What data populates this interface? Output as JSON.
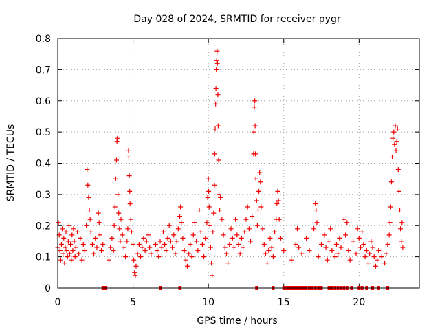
{
  "chart_data": {
    "type": "scatter",
    "title": "Day 028 of 2024, SRMTID for receiver pygr",
    "xlabel": "GPS time / hours",
    "ylabel": "SRMTID / TECUs",
    "xlim": [
      0,
      24
    ],
    "ylim": [
      0,
      0.8
    ],
    "xticks": [
      0,
      5,
      10,
      15,
      20
    ],
    "xtick_labels": [
      "0",
      "5",
      "10",
      "15",
      "20"
    ],
    "yticks": [
      0,
      0.1,
      0.2,
      0.3,
      0.4,
      0.5,
      0.6,
      0.7,
      0.8
    ],
    "ytick_labels": [
      "0",
      "0.1",
      "0.2",
      "0.3",
      "0.4",
      "0.5",
      "0.6",
      "0.7",
      "0.8"
    ],
    "grid": true,
    "marker": "+",
    "color": "#ee0000",
    "series": [
      {
        "name": "SRMTID",
        "points": [
          [
            0.0,
            0.13
          ],
          [
            0.05,
            0.21
          ],
          [
            0.1,
            0.17
          ],
          [
            0.15,
            0.12
          ],
          [
            0.2,
            0.09
          ],
          [
            0.25,
            0.14
          ],
          [
            0.3,
            0.19
          ],
          [
            0.35,
            0.11
          ],
          [
            0.4,
            0.16
          ],
          [
            0.45,
            0.08
          ],
          [
            0.5,
            0.13
          ],
          [
            0.55,
            0.18
          ],
          [
            0.6,
            0.12
          ],
          [
            0.65,
            0.1
          ],
          [
            0.7,
            0.15
          ],
          [
            0.75,
            0.2
          ],
          [
            0.8,
            0.11
          ],
          [
            0.85,
            0.14
          ],
          [
            0.9,
            0.09
          ],
          [
            0.95,
            0.17
          ],
          [
            1.0,
            0.12
          ],
          [
            1.05,
            0.19
          ],
          [
            1.1,
            0.15
          ],
          [
            1.15,
            0.1
          ],
          [
            1.2,
            0.13
          ],
          [
            1.3,
            0.18
          ],
          [
            1.4,
            0.11
          ],
          [
            1.5,
            0.16
          ],
          [
            1.6,
            0.09
          ],
          [
            1.7,
            0.14
          ],
          [
            1.8,
            0.12
          ],
          [
            1.9,
            0.2
          ],
          [
            1.95,
            0.38
          ],
          [
            2.0,
            0.33
          ],
          [
            2.05,
            0.29
          ],
          [
            2.1,
            0.25
          ],
          [
            2.15,
            0.22
          ],
          [
            2.2,
            0.18
          ],
          [
            2.3,
            0.14
          ],
          [
            2.4,
            0.11
          ],
          [
            2.5,
            0.16
          ],
          [
            2.6,
            0.13
          ],
          [
            2.7,
            0.24
          ],
          [
            2.75,
            0.21
          ],
          [
            2.8,
            0.17
          ],
          [
            2.9,
            0.12
          ],
          [
            3.0,
            0.14
          ],
          [
            3.4,
            0.09
          ],
          [
            3.5,
            0.13
          ],
          [
            3.6,
            0.16
          ],
          [
            3.7,
            0.12
          ],
          [
            3.75,
            0.2
          ],
          [
            3.8,
            0.26
          ],
          [
            3.85,
            0.35
          ],
          [
            3.9,
            0.41
          ],
          [
            3.93,
            0.47
          ],
          [
            3.96,
            0.48
          ],
          [
            4.0,
            0.3
          ],
          [
            4.05,
            0.24
          ],
          [
            4.1,
            0.19
          ],
          [
            4.15,
            0.15
          ],
          [
            4.2,
            0.22
          ],
          [
            4.3,
            0.17
          ],
          [
            4.4,
            0.13
          ],
          [
            4.5,
            0.1
          ],
          [
            4.6,
            0.15
          ],
          [
            4.65,
            0.19
          ],
          [
            4.7,
            0.44
          ],
          [
            4.72,
            0.42
          ],
          [
            4.75,
            0.36
          ],
          [
            4.78,
            0.31
          ],
          [
            4.8,
            0.27
          ],
          [
            4.85,
            0.22
          ],
          [
            4.9,
            0.18
          ],
          [
            5.0,
            0.14
          ],
          [
            5.05,
            0.09
          ],
          [
            5.1,
            0.05
          ],
          [
            5.15,
            0.04
          ],
          [
            5.2,
            0.07
          ],
          [
            5.3,
            0.11
          ],
          [
            5.4,
            0.14
          ],
          [
            5.5,
            0.1
          ],
          [
            5.6,
            0.13
          ],
          [
            5.7,
            0.16
          ],
          [
            5.8,
            0.12
          ],
          [
            5.9,
            0.15
          ],
          [
            6.0,
            0.17
          ],
          [
            6.1,
            0.13
          ],
          [
            6.2,
            0.11
          ],
          [
            6.5,
            0.14
          ],
          [
            6.6,
            0.12
          ],
          [
            6.7,
            0.1
          ],
          [
            6.8,
            0.15
          ],
          [
            6.9,
            0.13
          ],
          [
            7.0,
            0.18
          ],
          [
            7.1,
            0.14
          ],
          [
            7.2,
            0.12
          ],
          [
            7.3,
            0.16
          ],
          [
            7.4,
            0.2
          ],
          [
            7.5,
            0.15
          ],
          [
            7.6,
            0.13
          ],
          [
            7.7,
            0.17
          ],
          [
            7.8,
            0.11
          ],
          [
            7.9,
            0.15
          ],
          [
            8.0,
            0.19
          ],
          [
            8.1,
            0.23
          ],
          [
            8.15,
            0.26
          ],
          [
            8.2,
            0.21
          ],
          [
            8.3,
            0.16
          ],
          [
            8.4,
            0.12
          ],
          [
            8.5,
            0.09
          ],
          [
            8.6,
            0.07
          ],
          [
            8.7,
            0.11
          ],
          [
            8.8,
            0.14
          ],
          [
            8.9,
            0.1
          ],
          [
            9.0,
            0.17
          ],
          [
            9.1,
            0.21
          ],
          [
            9.2,
            0.15
          ],
          [
            9.3,
            0.12
          ],
          [
            9.4,
            0.25
          ],
          [
            9.5,
            0.18
          ],
          [
            9.6,
            0.14
          ],
          [
            9.7,
            0.1
          ],
          [
            9.8,
            0.16
          ],
          [
            9.9,
            0.21
          ],
          [
            9.95,
            0.29
          ],
          [
            10.0,
            0.35
          ],
          [
            10.02,
            0.31
          ],
          [
            10.05,
            0.26
          ],
          [
            10.1,
            0.2
          ],
          [
            10.15,
            0.13
          ],
          [
            10.2,
            0.08
          ],
          [
            10.25,
            0.04
          ],
          [
            10.3,
            0.18
          ],
          [
            10.35,
            0.24
          ],
          [
            10.4,
            0.33
          ],
          [
            10.42,
            0.43
          ],
          [
            10.45,
            0.51
          ],
          [
            10.48,
            0.59
          ],
          [
            10.5,
            0.64
          ],
          [
            10.53,
            0.7
          ],
          [
            10.55,
            0.73
          ],
          [
            10.58,
            0.76
          ],
          [
            10.6,
            0.72
          ],
          [
            10.63,
            0.62
          ],
          [
            10.65,
            0.52
          ],
          [
            10.68,
            0.41
          ],
          [
            10.7,
            0.3
          ],
          [
            10.75,
            0.25
          ],
          [
            10.8,
            0.29
          ],
          [
            10.9,
            0.22
          ],
          [
            11.0,
            0.17
          ],
          [
            11.1,
            0.13
          ],
          [
            11.2,
            0.11
          ],
          [
            11.3,
            0.08
          ],
          [
            11.4,
            0.14
          ],
          [
            11.5,
            0.19
          ],
          [
            11.6,
            0.16
          ],
          [
            11.7,
            0.13
          ],
          [
            11.8,
            0.22
          ],
          [
            11.9,
            0.17
          ],
          [
            12.0,
            0.14
          ],
          [
            12.1,
            0.11
          ],
          [
            12.2,
            0.16
          ],
          [
            12.3,
            0.13
          ],
          [
            12.4,
            0.18
          ],
          [
            12.5,
            0.22
          ],
          [
            12.6,
            0.26
          ],
          [
            12.7,
            0.19
          ],
          [
            12.8,
            0.15
          ],
          [
            12.9,
            0.23
          ],
          [
            13.0,
            0.43
          ],
          [
            13.02,
            0.5
          ],
          [
            13.05,
            0.58
          ],
          [
            13.08,
            0.6
          ],
          [
            13.1,
            0.52
          ],
          [
            13.12,
            0.43
          ],
          [
            13.15,
            0.35
          ],
          [
            13.2,
            0.28
          ],
          [
            13.25,
            0.2
          ],
          [
            13.3,
            0.25
          ],
          [
            13.35,
            0.31
          ],
          [
            13.4,
            0.37
          ],
          [
            13.45,
            0.34
          ],
          [
            13.5,
            0.26
          ],
          [
            13.6,
            0.19
          ],
          [
            13.7,
            0.14
          ],
          [
            13.8,
            0.11
          ],
          [
            13.9,
            0.08
          ],
          [
            14.0,
            0.12
          ],
          [
            14.1,
            0.16
          ],
          [
            14.2,
            0.13
          ],
          [
            14.3,
            0.1
          ],
          [
            14.4,
            0.18
          ],
          [
            14.5,
            0.22
          ],
          [
            14.55,
            0.27
          ],
          [
            14.6,
            0.31
          ],
          [
            14.65,
            0.28
          ],
          [
            14.7,
            0.22
          ],
          [
            14.8,
            0.16
          ],
          [
            15.0,
            0.12
          ],
          [
            15.5,
            0.09
          ],
          [
            15.8,
            0.14
          ],
          [
            15.9,
            0.19
          ],
          [
            16.0,
            0.13
          ],
          [
            16.2,
            0.11
          ],
          [
            16.5,
            0.16
          ],
          [
            16.7,
            0.12
          ],
          [
            17.0,
            0.19
          ],
          [
            17.1,
            0.27
          ],
          [
            17.15,
            0.25
          ],
          [
            17.2,
            0.21
          ],
          [
            17.3,
            0.1
          ],
          [
            17.5,
            0.14
          ],
          [
            17.7,
            0.17
          ],
          [
            17.8,
            0.13
          ],
          [
            17.9,
            0.09
          ],
          [
            18.0,
            0.15
          ],
          [
            18.1,
            0.19
          ],
          [
            18.2,
            0.12
          ],
          [
            18.4,
            0.1
          ],
          [
            18.5,
            0.14
          ],
          [
            18.6,
            0.11
          ],
          [
            18.7,
            0.16
          ],
          [
            18.8,
            0.13
          ],
          [
            19.0,
            0.22
          ],
          [
            19.1,
            0.17
          ],
          [
            19.2,
            0.21
          ],
          [
            19.3,
            0.12
          ],
          [
            19.4,
            0.09
          ],
          [
            19.6,
            0.15
          ],
          [
            19.8,
            0.11
          ],
          [
            19.9,
            0.19
          ],
          [
            20.0,
            0.16
          ],
          [
            20.1,
            0.13
          ],
          [
            20.2,
            0.18
          ],
          [
            20.3,
            0.14
          ],
          [
            20.4,
            0.1
          ],
          [
            20.5,
            0.12
          ],
          [
            20.6,
            0.08
          ],
          [
            20.7,
            0.11
          ],
          [
            20.8,
            0.15
          ],
          [
            20.9,
            0.13
          ],
          [
            21.0,
            0.1
          ],
          [
            21.1,
            0.07
          ],
          [
            21.2,
            0.09
          ],
          [
            21.3,
            0.12
          ],
          [
            21.5,
            0.1
          ],
          [
            21.7,
            0.08
          ],
          [
            21.8,
            0.11
          ],
          [
            21.9,
            0.14
          ],
          [
            22.0,
            0.17
          ],
          [
            22.05,
            0.21
          ],
          [
            22.1,
            0.26
          ],
          [
            22.15,
            0.34
          ],
          [
            22.2,
            0.42
          ],
          [
            22.25,
            0.48
          ],
          [
            22.3,
            0.5
          ],
          [
            22.35,
            0.46
          ],
          [
            22.4,
            0.52
          ],
          [
            22.45,
            0.44
          ],
          [
            22.5,
            0.47
          ],
          [
            22.55,
            0.51
          ],
          [
            22.6,
            0.38
          ],
          [
            22.65,
            0.31
          ],
          [
            22.7,
            0.25
          ],
          [
            22.75,
            0.19
          ],
          [
            22.8,
            0.15
          ],
          [
            22.85,
            0.21
          ],
          [
            22.9,
            0.13
          ]
        ]
      }
    ],
    "zero_points_x": [
      3.0,
      3.1,
      3.2,
      6.8,
      8.1,
      13.2,
      14.3,
      15.0,
      15.2,
      15.3,
      15.4,
      15.5,
      15.6,
      15.7,
      15.8,
      15.9,
      16.0,
      16.1,
      16.2,
      16.3,
      16.5,
      16.7,
      16.9,
      17.1,
      17.3,
      17.5,
      18.0,
      18.1,
      18.2,
      18.4,
      18.6,
      18.8,
      19.0,
      19.2,
      19.5,
      20.0,
      20.2,
      20.5,
      20.9,
      21.3,
      21.9
    ]
  }
}
